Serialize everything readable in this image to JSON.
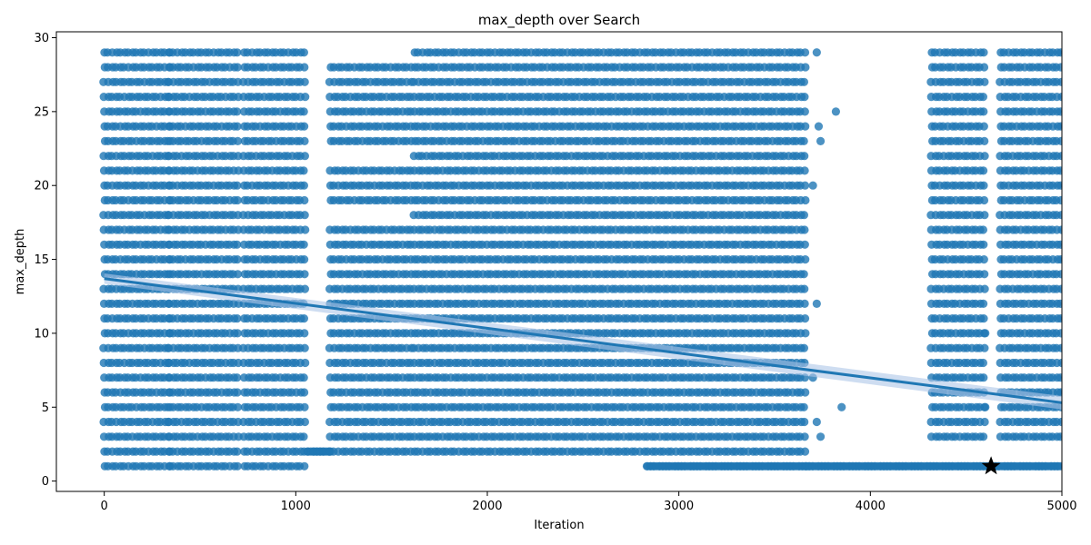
{
  "chart_data": {
    "type": "scatter",
    "title": "max_depth over Search",
    "xlabel": "Iteration",
    "ylabel": "max_depth",
    "xlim": [
      -250,
      5000
    ],
    "ylim": [
      -0.7,
      30.4
    ],
    "xticks": [
      0,
      1000,
      2000,
      3000,
      4000,
      5000
    ],
    "yticks": [
      0,
      5,
      10,
      15,
      20,
      25,
      30
    ],
    "grid": false,
    "point_color": "#1f77b4",
    "point_opacity": 0.8,
    "band_color": "#aec7e8",
    "regression": {
      "x": [
        0,
        5000
      ],
      "y": [
        13.7,
        5.3
      ],
      "band_halfwidth": [
        0.35,
        0.45
      ]
    },
    "best_point": {
      "x": 4630,
      "y": 1,
      "marker": "star",
      "color": "#000000"
    },
    "segments": [
      {
        "x_start": 0,
        "x_end": 340,
        "y_values": [
          1,
          2,
          3,
          4,
          5,
          6,
          7,
          8,
          9,
          10,
          11,
          12,
          13,
          14,
          15,
          16,
          17,
          18,
          19,
          20,
          21,
          22,
          23,
          24,
          25,
          26,
          27,
          28,
          29
        ]
      },
      {
        "x_start": 340,
        "x_end": 700,
        "y_values": [
          1,
          2,
          3,
          4,
          5,
          6,
          7,
          8,
          9,
          10,
          11,
          12,
          13,
          14,
          15,
          16,
          17,
          18,
          19,
          20,
          21,
          22,
          23,
          24,
          25,
          26,
          27,
          28,
          29
        ]
      },
      {
        "x_start": 730,
        "x_end": 1060,
        "y_values": [
          1,
          2,
          3,
          4,
          5,
          6,
          7,
          8,
          9,
          10,
          11,
          12,
          13,
          14,
          15,
          16,
          17,
          18,
          19,
          20,
          21,
          22,
          23,
          24,
          25,
          26,
          27,
          28,
          29
        ]
      },
      {
        "x_start": 1060,
        "x_end": 1180,
        "y_values": [
          2
        ]
      },
      {
        "x_start": 1180,
        "x_end": 1600,
        "y_values": [
          2,
          3,
          4,
          5,
          6,
          7,
          8,
          9,
          10,
          11,
          12,
          13,
          14,
          15,
          16,
          17,
          19,
          20,
          21,
          23,
          24,
          25,
          26,
          27,
          28
        ]
      },
      {
        "x_start": 1620,
        "x_end": 3660,
        "y_values": [
          2,
          3,
          4,
          5,
          6,
          7,
          8,
          9,
          10,
          11,
          12,
          13,
          14,
          15,
          16,
          17,
          18,
          19,
          20,
          21,
          22,
          23,
          24,
          25,
          26,
          27,
          28,
          29
        ]
      },
      {
        "x_start": 2830,
        "x_end": 3660,
        "y_values": [
          1
        ]
      },
      {
        "x_start": 3660,
        "x_end": 5000,
        "y_values": [
          1
        ]
      },
      {
        "x_start": 4320,
        "x_end": 4600,
        "y_values": [
          3,
          4,
          5,
          6,
          7,
          8,
          9,
          10,
          11,
          12,
          13,
          14,
          15,
          16,
          17,
          18,
          19,
          20,
          21,
          22,
          23,
          24,
          25,
          26,
          27,
          28,
          29
        ]
      },
      {
        "x_start": 4680,
        "x_end": 5000,
        "y_values": [
          3,
          4,
          5,
          6,
          7,
          8,
          9,
          10,
          11,
          12,
          13,
          14,
          15,
          16,
          17,
          18,
          19,
          20,
          21,
          22,
          23,
          24,
          25,
          26,
          27,
          28,
          29
        ]
      }
    ],
    "extra_points": [
      {
        "x": 3720,
        "y": 29
      },
      {
        "x": 3820,
        "y": 25
      },
      {
        "x": 3740,
        "y": 23
      },
      {
        "x": 3730,
        "y": 24
      },
      {
        "x": 3700,
        "y": 20
      },
      {
        "x": 3720,
        "y": 12
      },
      {
        "x": 3850,
        "y": 5
      },
      {
        "x": 3700,
        "y": 7
      },
      {
        "x": 3740,
        "y": 3
      },
      {
        "x": 3720,
        "y": 4
      },
      {
        "x": 4600,
        "y": 10
      },
      {
        "x": 4600,
        "y": 5
      }
    ]
  }
}
